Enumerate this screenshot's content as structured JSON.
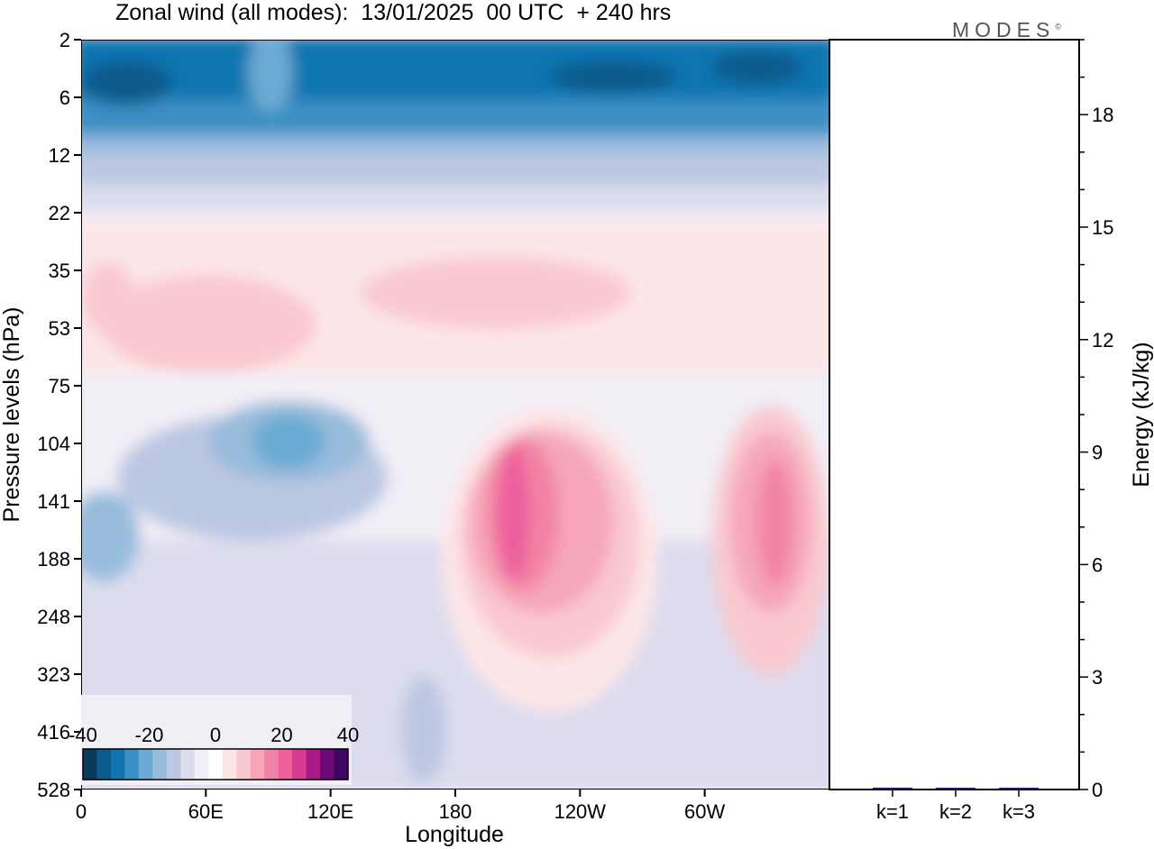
{
  "header": {
    "title": "Zonal wind (all modes):  13/01/2025  00 UTC  + 240 hrs",
    "logo": "MODES"
  },
  "colors": {
    "scale": [
      "#0a3a5c",
      "#0a5a8c",
      "#1174b0",
      "#3a8fc4",
      "#6aaad3",
      "#98bcdc",
      "#bcc7e2",
      "#dcdcee",
      "#f2eef6",
      "#ffffff",
      "#fde6e8",
      "#f9c9cf",
      "#f6a6b8",
      "#f283a6",
      "#ee5f9c",
      "#d73a91",
      "#a81a86",
      "#6e0a78",
      "#3f0762"
    ],
    "accent": "#000000"
  },
  "chart_data": [
    {
      "type": "heatmap",
      "title": "Zonal wind (all modes):  13/01/2025  00 UTC  + 240 hrs",
      "xlabel": "Longitude",
      "ylabel": "Pressure levels (hPa)",
      "x_ticks": [
        "0",
        "60E",
        "120E",
        "180",
        "120W",
        "60W"
      ],
      "y_ticks": [
        "2",
        "6",
        "12",
        "22",
        "35",
        "53",
        "75",
        "104",
        "141",
        "188",
        "248",
        "323",
        "416",
        "528"
      ],
      "colorbar": {
        "ticks": [
          "-40",
          "-20",
          "0",
          "20",
          "40"
        ],
        "range": [
          -40,
          40
        ]
      },
      "features": [
        {
          "lon": [
            0,
            360
          ],
          "level": [
            "2",
            "12"
          ],
          "value": -25
        },
        {
          "lon": [
            20,
            35
          ],
          "level": [
            "2",
            "6"
          ],
          "value": -40
        },
        {
          "lon": [
            245,
            290
          ],
          "level": [
            "2",
            "6"
          ],
          "value": -40
        },
        {
          "lon": [
            310,
            345
          ],
          "level": [
            "2",
            "6"
          ],
          "value": -40
        },
        {
          "lon": [
            60,
            140
          ],
          "level": [
            "75",
            "188"
          ],
          "value": -15
        },
        {
          "lon": [
            185,
            240
          ],
          "level": [
            "104",
            "248"
          ],
          "value": 25
        },
        {
          "lon": [
            300,
            345
          ],
          "level": [
            "104",
            "248"
          ],
          "value": 20
        },
        {
          "lon": [
            10,
            270
          ],
          "level": [
            "35",
            "75"
          ],
          "value": 5
        }
      ]
    },
    {
      "type": "bar",
      "categories": [
        "k=1",
        "k=2",
        "k=3"
      ],
      "values": [
        0.05,
        0.04,
        0.04
      ],
      "ylabel": "Energy (kJ/kg)",
      "y_ticks": [
        "0",
        "3",
        "6",
        "9",
        "12",
        "15",
        "18"
      ],
      "ylim": [
        0,
        20
      ]
    }
  ]
}
